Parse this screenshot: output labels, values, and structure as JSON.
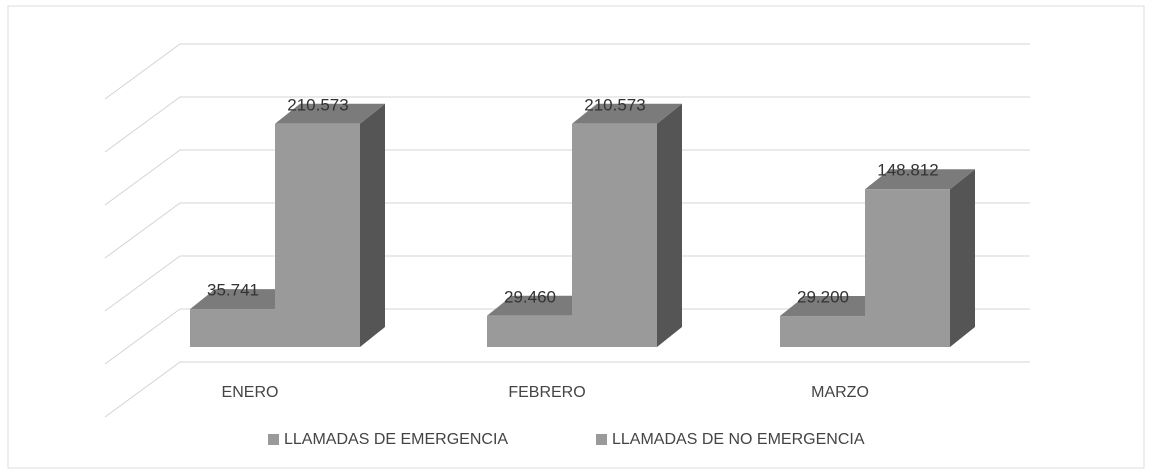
{
  "chart_data": {
    "type": "bar3d",
    "categories": [
      "ENERO",
      "FEBRERO",
      "MARZO"
    ],
    "series": [
      {
        "name": "LLAMADAS DE EMERGENCIA",
        "color": "#9a9a9a",
        "values": [
          35741,
          29460,
          29200
        ],
        "value_labels": [
          "35.741",
          "29.460",
          "29.200"
        ]
      },
      {
        "name": "LLAMADAS DE NO EMERGENCIA",
        "color": "#9a9a9a",
        "values": [
          210573,
          210573,
          148812
        ],
        "value_labels": [
          "210.573",
          "210.573",
          "148.812"
        ]
      }
    ],
    "ylim": [
      0,
      300000
    ],
    "yticks": [
      0,
      50000,
      100000,
      150000,
      200000,
      250000,
      300000
    ],
    "grid": true,
    "legend": "bottom"
  }
}
